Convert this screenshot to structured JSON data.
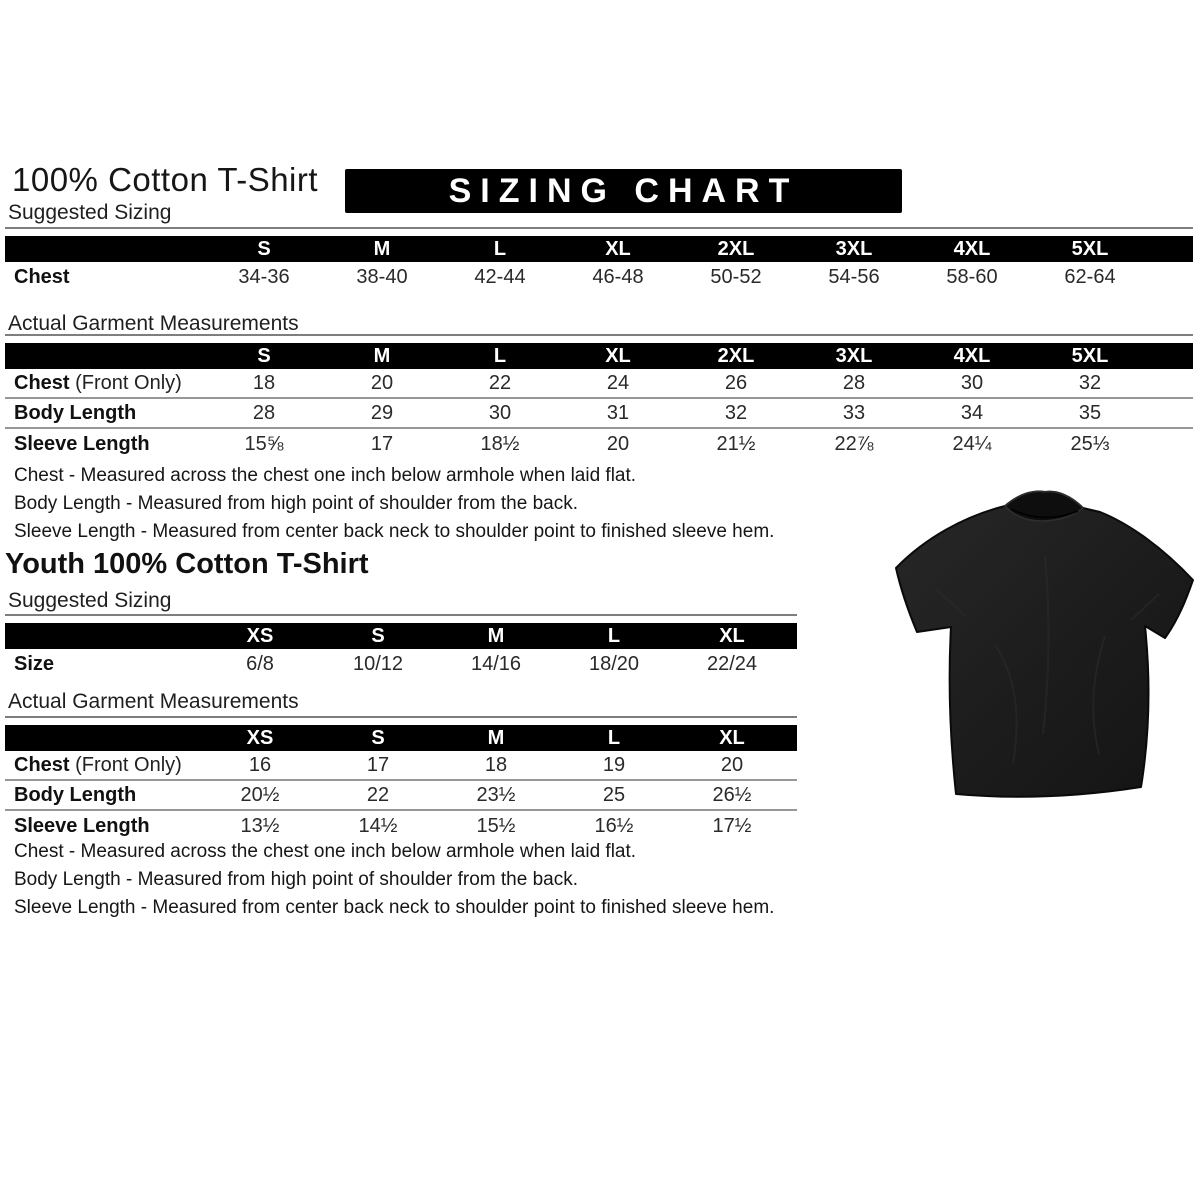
{
  "header": {
    "title": "100% Cotton T-Shirt",
    "banner_label": "SIZING CHART"
  },
  "adult": {
    "suggested_label": "Suggested Sizing",
    "agm_label": "Actual Garment Measurements",
    "suggested_table": {
      "columns": [
        "S",
        "M",
        "L",
        "XL",
        "2XL",
        "3XL",
        "4XL",
        "5XL"
      ],
      "rows": [
        {
          "label": "Chest",
          "suffix": "",
          "values": [
            "34-36",
            "38-40",
            "42-44",
            "46-48",
            "50-52",
            "54-56",
            "58-60",
            "62-64"
          ]
        }
      ]
    },
    "agm_table": {
      "columns": [
        "S",
        "M",
        "L",
        "XL",
        "2XL",
        "3XL",
        "4XL",
        "5XL"
      ],
      "rows": [
        {
          "label": "Chest",
          "suffix": " (Front Only)",
          "values": [
            "18",
            "20",
            "22",
            "24",
            "26",
            "28",
            "30",
            "32"
          ]
        },
        {
          "label": "Body Length",
          "suffix": "",
          "values": [
            "28",
            "29",
            "30",
            "31",
            "32",
            "33",
            "34",
            "35"
          ]
        },
        {
          "label": "Sleeve Length",
          "suffix": "",
          "values": [
            "15⅝",
            "17",
            "18½",
            "20",
            "21½",
            "22⅞",
            "24¼",
            "25⅓"
          ]
        }
      ]
    },
    "notes": [
      "Chest - Measured across the chest one inch below armhole when laid flat.",
      "Body Length - Measured from high point of shoulder from the back.",
      "Sleeve Length - Measured from center back neck to shoulder point to finished sleeve hem."
    ]
  },
  "youth": {
    "title": "Youth 100% Cotton T-Shirt",
    "suggested_label": "Suggested Sizing",
    "agm_label": "Actual Garment Measurements",
    "suggested_table": {
      "columns": [
        "XS",
        "S",
        "M",
        "L",
        "XL"
      ],
      "rows": [
        {
          "label": "Size",
          "suffix": "",
          "values": [
            "6/8",
            "10/12",
            "14/16",
            "18/20",
            "22/24"
          ]
        }
      ]
    },
    "agm_table": {
      "columns": [
        "XS",
        "S",
        "M",
        "L",
        "XL"
      ],
      "rows": [
        {
          "label": "Chest",
          "suffix": " (Front Only)",
          "values": [
            "16",
            "17",
            "18",
            "19",
            "20"
          ]
        },
        {
          "label": "Body Length",
          "suffix": "",
          "values": [
            "20½",
            "22",
            "23½",
            "25",
            "26½"
          ]
        },
        {
          "label": "Sleeve Length",
          "suffix": "",
          "values": [
            "13½",
            "14½",
            "15½",
            "16½",
            "17½"
          ]
        }
      ]
    },
    "notes": [
      "Chest - Measured across the chest one inch below armhole when laid flat.",
      "Body Length - Measured from high point of shoulder from the back.",
      "Sleeve Length - Measured from center back neck to shoulder point to finished sleeve hem."
    ]
  },
  "product_image": {
    "description": "black short-sleeve crew-neck t-shirt, front view"
  },
  "colors": {
    "table_header_bg": "#000000",
    "table_header_text": "#ffffff",
    "body_text": "#222222",
    "separator_gray": "#979797",
    "tshirt_dark": "#1c1c1c"
  }
}
